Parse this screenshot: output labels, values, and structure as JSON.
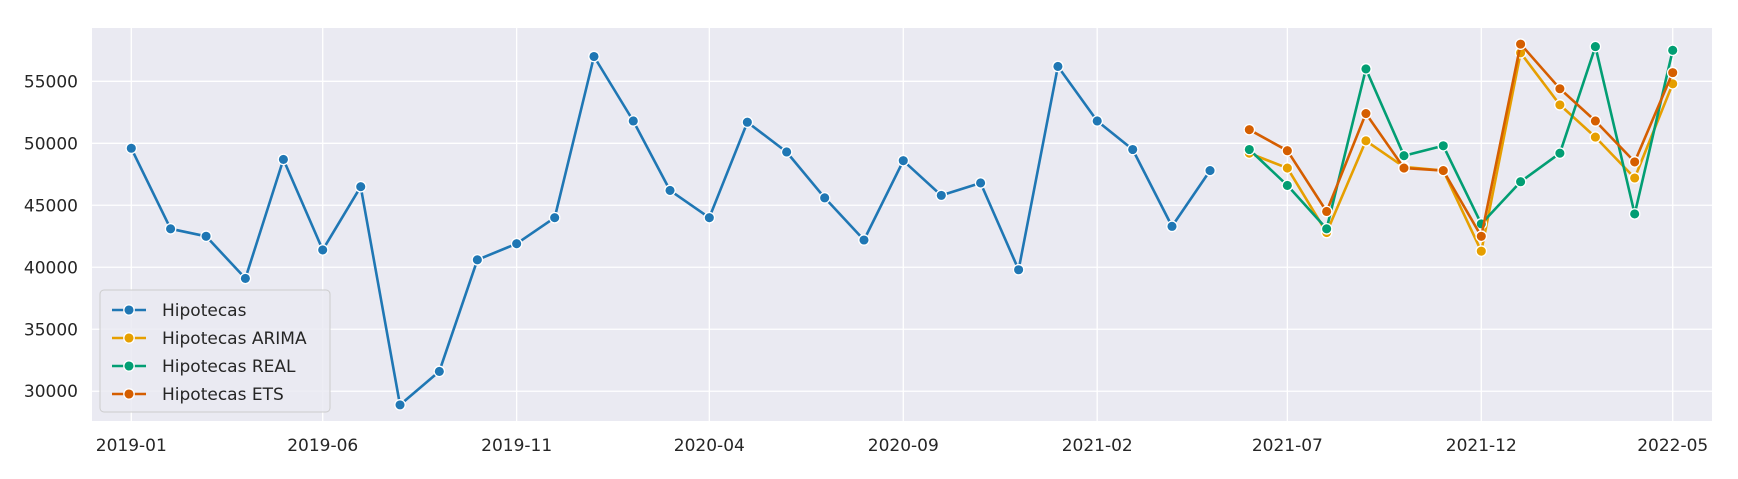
{
  "chart_data": {
    "type": "line",
    "title": "",
    "xlabel": "",
    "ylabel": "",
    "x_range": [
      "2018-12-01",
      "2022-06-01"
    ],
    "y_range": [
      27600,
      59300
    ],
    "y_ticks": [
      30000,
      35000,
      40000,
      45000,
      50000,
      55000
    ],
    "x_ticks": [
      "2019-01",
      "2019-06",
      "2019-11",
      "2020-04",
      "2020-09",
      "2021-02",
      "2021-07",
      "2021-12",
      "2022-05"
    ],
    "grid": true,
    "legend_position": "lower-left",
    "background_color": "#eaeaf2",
    "series": [
      {
        "name": "Hipotecas",
        "color": "#1f77b4",
        "x": [
          "2019-01",
          "2019-02",
          "2019-03",
          "2019-04",
          "2019-05",
          "2019-06",
          "2019-07",
          "2019-08",
          "2019-09",
          "2019-10",
          "2019-11",
          "2019-12",
          "2020-01",
          "2020-02",
          "2020-03",
          "2020-04",
          "2020-05",
          "2020-06",
          "2020-07",
          "2020-08",
          "2020-09",
          "2020-10",
          "2020-11",
          "2020-12",
          "2021-01",
          "2021-02",
          "2021-03",
          "2021-04",
          "2021-05"
        ],
        "values": [
          49600,
          43100,
          42500,
          39100,
          48700,
          41400,
          46500,
          28900,
          31600,
          40600,
          41900,
          44000,
          57000,
          51800,
          46200,
          44000,
          51700,
          49300,
          45600,
          42200,
          48600,
          45800,
          46800,
          39800,
          56200,
          51800,
          49500,
          43300,
          47800
        ]
      },
      {
        "name": "Hipotecas ARIMA",
        "color": "#e69f00",
        "x": [
          "2021-06",
          "2021-07",
          "2021-08",
          "2021-09",
          "2021-10",
          "2021-11",
          "2021-12",
          "2022-01",
          "2022-02",
          "2022-03",
          "2022-04",
          "2022-05"
        ],
        "values": [
          49200,
          48000,
          42800,
          50200,
          48100,
          47800,
          41300,
          57300,
          53100,
          50500,
          47200,
          54800
        ]
      },
      {
        "name": "Hipotecas REAL",
        "color": "#029e73",
        "x": [
          "2021-06",
          "2021-07",
          "2021-08",
          "2021-09",
          "2021-10",
          "2021-11",
          "2021-12",
          "2022-01",
          "2022-02",
          "2022-03",
          "2022-04",
          "2022-05"
        ],
        "values": [
          49500,
          46600,
          43100,
          56000,
          49000,
          49800,
          43500,
          46900,
          49200,
          57800,
          44300,
          57500
        ]
      },
      {
        "name": "Hipotecas ETS",
        "color": "#d55e00",
        "x": [
          "2021-06",
          "2021-07",
          "2021-08",
          "2021-09",
          "2021-10",
          "2021-11",
          "2021-12",
          "2022-01",
          "2022-02",
          "2022-03",
          "2022-04",
          "2022-05"
        ],
        "values": [
          51100,
          49400,
          44500,
          52400,
          48000,
          47800,
          42500,
          58000,
          54400,
          51800,
          48500,
          55700
        ]
      }
    ]
  }
}
